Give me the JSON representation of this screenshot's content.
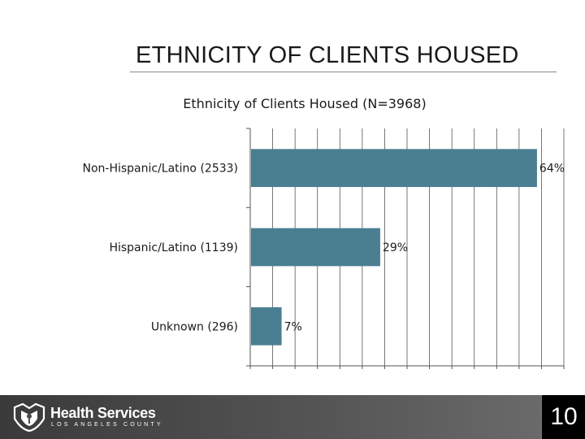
{
  "slide": {
    "title": "ETHNICITY OF CLIENTS HOUSED",
    "page_number": "10"
  },
  "footer": {
    "logo_name": "Health Services",
    "logo_sub": "LOS ANGELES COUNTY",
    "background": "#4a4a4a"
  },
  "chart_data": {
    "type": "bar",
    "orientation": "horizontal",
    "title": "Ethnicity of Clients Housed (N=3968)",
    "categories": [
      "Non-Hispanic/Latino (2533)",
      "Hispanic/Latino (1139)",
      "Unknown (296)"
    ],
    "values": [
      64,
      29,
      7
    ],
    "data_labels": [
      "64%",
      "29%",
      "7%"
    ],
    "xlim": [
      0,
      70
    ],
    "grid": true,
    "bar_color": "#4a7e91"
  }
}
